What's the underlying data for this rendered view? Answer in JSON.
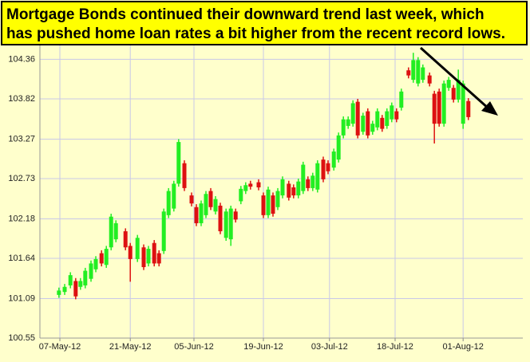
{
  "chart_data": {
    "type": "candlestick",
    "title": [
      "Mortgage Bonds continued their downward trend last week, which",
      "has pushed home loan rates a bit higher from the recent record lows."
    ],
    "up_color": "#22ee22",
    "down_color": "#dd1111",
    "grid": true,
    "grid_color": "#c8c8e8",
    "xlim": [
      -4.17,
      96.67
    ],
    "xticks": [
      {
        "value": 0,
        "label": "07-May-12"
      },
      {
        "value": 14.7,
        "label": "21-May-12"
      },
      {
        "value": 28,
        "label": "05-Jun-12"
      },
      {
        "value": 42.5,
        "label": "19-Jun-12"
      },
      {
        "value": 56.3,
        "label": "03-Jul-12"
      },
      {
        "value": 70,
        "label": "18-Jul-12"
      },
      {
        "value": 84.2,
        "label": "01-Aug-12"
      }
    ],
    "ylim": [
      100.55,
      104.55
    ],
    "yticks": [
      100.55,
      101.09,
      101.64,
      102.18,
      102.73,
      103.27,
      103.82,
      104.36
    ],
    "x": [
      -0.2,
      1,
      2.2,
      3.3,
      4.3,
      5.3,
      6.5,
      7.5,
      8.7,
      9.7,
      10.7,
      11.7,
      13.7,
      14.7,
      16.2,
      17.5,
      18.5,
      19.7,
      20.7,
      21.7,
      22.7,
      23.8,
      24.8,
      26,
      27.5,
      28.5,
      29.5,
      30.5,
      31.5,
      32.5,
      33.5,
      34.7,
      35.7,
      36.7,
      37.8,
      38.8,
      39.8,
      41.5,
      42.5,
      43.5,
      44.5,
      45.5,
      46.5,
      47.8,
      48.8,
      49.8,
      50.8,
      51.8,
      52.8,
      53.8,
      55,
      56,
      57.2,
      58.2,
      59.2,
      60.2,
      61.2,
      62.2,
      63.3,
      64.3,
      65.3,
      66.3,
      67.3,
      68.3,
      69.3,
      70.3,
      71.3,
      72.8,
      73.8,
      74.8,
      75.8,
      77.2,
      78.2,
      79.2,
      80.2,
      81.2,
      82.2,
      83.2,
      84.2,
      85.3
    ],
    "open": [
      101.14,
      101.18,
      101.27,
      101.33,
      101.25,
      101.27,
      101.36,
      101.49,
      101.71,
      101.55,
      101.79,
      101.9,
      102.01,
      101.81,
      101.63,
      101.79,
      101.57,
      101.85,
      101.71,
      101.74,
      102.23,
      102.32,
      102.66,
      102.94,
      102.5,
      102.34,
      102.12,
      102.23,
      102.56,
      102.28,
      102.36,
      101.92,
      101.9,
      102.28,
      102.42,
      102.56,
      102.66,
      102.68,
      102.5,
      102.23,
      102.5,
      102.34,
      102.5,
      102.66,
      102.61,
      102.5,
      102.56,
      102.72,
      102.6,
      102.58,
      102.99,
      102.94,
      102.88,
      102.99,
      103.32,
      103.45,
      103.48,
      103.78,
      103.37,
      103.65,
      103.37,
      103.43,
      103.56,
      103.45,
      103.54,
      103.65,
      103.7,
      104.21,
      104.08,
      104.03,
      104.08,
      104.14,
      103.89,
      103.92,
      103.48,
      103.97,
      103.97,
      103.81,
      103.48,
      103.79
    ],
    "high": [
      101.24,
      101.29,
      101.45,
      101.37,
      101.37,
      101.51,
      101.61,
      101.67,
      101.75,
      101.81,
      102.25,
      102.16,
      102.05,
      101.85,
      101.96,
      101.83,
      101.81,
      101.89,
      101.75,
      102.32,
      102.6,
      102.7,
      103.27,
      102.98,
      102.54,
      102.38,
      102.43,
      102.56,
      102.6,
      102.49,
      102.4,
      102.32,
      102.36,
      102.32,
      102.63,
      102.68,
      102.7,
      102.72,
      102.54,
      102.62,
      102.54,
      102.6,
      102.76,
      102.7,
      102.65,
      102.73,
      102.96,
      102.76,
      102.81,
      102.98,
      103.03,
      102.98,
      103.14,
      103.36,
      103.58,
      103.58,
      103.8,
      103.82,
      103.63,
      103.69,
      103.52,
      103.69,
      103.6,
      103.69,
      103.77,
      103.69,
      103.96,
      104.25,
      104.45,
      104.39,
      104.29,
      104.18,
      103.93,
      103.96,
      104.07,
      104.12,
      104.01,
      104.22,
      104.07,
      103.83
    ],
    "low": [
      101.1,
      101.14,
      101.23,
      101.08,
      101.21,
      101.23,
      101.32,
      101.45,
      101.53,
      101.51,
      101.75,
      101.86,
      101.75,
      101.32,
      101.59,
      101.48,
      101.53,
      101.53,
      101.53,
      101.7,
      102.19,
      102.28,
      102.62,
      102.56,
      102.35,
      102.08,
      102.08,
      102.19,
      102.3,
      102.24,
      101.97,
      101.88,
      101.81,
      102.13,
      102.38,
      102.52,
      102.58,
      102.57,
      102.19,
      102.19,
      102.21,
      102.3,
      102.46,
      102.43,
      102.46,
      102.46,
      102.52,
      102.56,
      102.56,
      102.54,
      102.68,
      102.79,
      102.84,
      102.95,
      103.28,
      103.41,
      103.44,
      103.28,
      103.33,
      103.28,
      103.33,
      103.39,
      103.37,
      103.41,
      103.5,
      103.5,
      103.66,
      104.1,
      104.04,
      103.99,
      104.04,
      103.99,
      103.21,
      103.44,
      103.44,
      103.93,
      103.77,
      103.77,
      103.41,
      103.53
    ],
    "close": [
      101.2,
      101.25,
      101.41,
      101.12,
      101.33,
      101.47,
      101.57,
      101.63,
      101.57,
      101.77,
      102.21,
      102.12,
      101.79,
      101.63,
      101.92,
      101.52,
      101.77,
      101.57,
      101.57,
      102.28,
      102.56,
      102.66,
      103.23,
      102.6,
      102.39,
      102.12,
      102.39,
      102.52,
      102.34,
      102.45,
      102.01,
      102.28,
      102.32,
      102.17,
      102.59,
      102.64,
      102.62,
      102.61,
      102.23,
      102.58,
      102.25,
      102.56,
      102.72,
      102.47,
      102.5,
      102.69,
      102.92,
      102.6,
      102.77,
      102.94,
      102.72,
      102.83,
      103.1,
      103.32,
      103.54,
      103.54,
      103.76,
      103.32,
      103.59,
      103.32,
      103.48,
      103.65,
      103.41,
      103.65,
      103.73,
      103.54,
      103.92,
      104.14,
      104.35,
      104.35,
      104.25,
      104.03,
      103.48,
      103.48,
      104.03,
      104.08,
      103.81,
      104.08,
      104.03,
      103.57
    ]
  }
}
